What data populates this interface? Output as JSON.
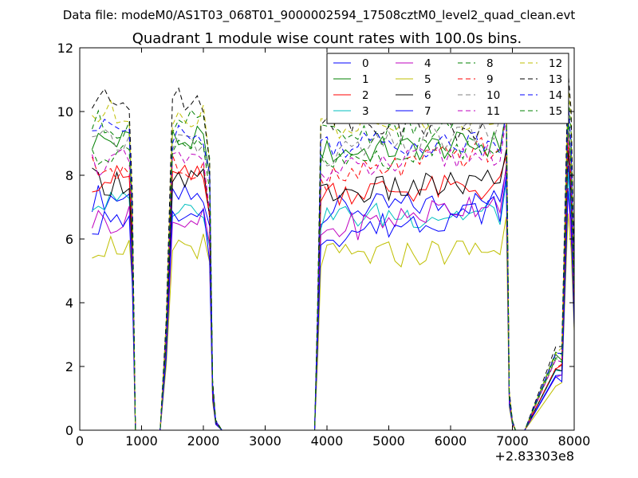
{
  "chart_data": {
    "type": "line",
    "suptitle": "Data file: modeM0/AS1T03_068T01_9000002594_17508cztM0_level2_quad_clean.evt",
    "title": "Quadrant 1 module wise count rates with 100.0s bins.",
    "xlabel": "",
    "ylabel": "",
    "x_offset_label": "+2.83303e8",
    "xlim": [
      0,
      8000
    ],
    "ylim": [
      0,
      12
    ],
    "x_ticks": [
      0,
      1000,
      2000,
      3000,
      4000,
      5000,
      6000,
      7000,
      8000
    ],
    "y_ticks": [
      0,
      2,
      4,
      6,
      8,
      10,
      12
    ],
    "legend_location": "top-right",
    "x": [
      200,
      300,
      400,
      500,
      600,
      700,
      800,
      850,
      900,
      1000,
      1100,
      1200,
      1300,
      1400,
      1500,
      1600,
      1700,
      1800,
      1900,
      2000,
      2100,
      2150,
      2200,
      2300,
      3000,
      3800,
      3850,
      3900,
      4000,
      4100,
      4200,
      4300,
      4400,
      4500,
      4600,
      4700,
      4800,
      4900,
      5000,
      5100,
      5200,
      5300,
      5400,
      5500,
      5600,
      5700,
      5800,
      5900,
      6000,
      6100,
      6200,
      6300,
      6400,
      6500,
      6600,
      6700,
      6800,
      6900,
      6950,
      7000,
      7050,
      7100,
      7200,
      7700,
      7800,
      7900,
      7950,
      8000
    ],
    "series": [
      {
        "name": "0",
        "color": "#0000ff",
        "style": "solid",
        "base": 7.3,
        "top": 7.0
      },
      {
        "name": "1",
        "color": "#008000",
        "style": "solid",
        "base": 9.1,
        "top": 8.8
      },
      {
        "name": "2",
        "color": "#ff0000",
        "style": "solid",
        "base": 7.9,
        "top": 7.4
      },
      {
        "name": "3",
        "color": "#00bfbf",
        "style": "solid",
        "base": 7.1,
        "top": 6.6
      },
      {
        "name": "4",
        "color": "#bf00bf",
        "style": "solid",
        "base": 6.6,
        "top": 7.1
      },
      {
        "name": "5",
        "color": "#bfbf00",
        "style": "solid",
        "base": 5.8,
        "top": 5.5
      },
      {
        "name": "6",
        "color": "#000000",
        "style": "solid",
        "base": 7.8,
        "top": 7.6
      },
      {
        "name": "7",
        "color": "#0000ff",
        "style": "solid",
        "base": 6.5,
        "top": 6.8
      },
      {
        "name": "8",
        "color": "#008000",
        "style": "dashed",
        "base": 9.6,
        "top": 9.5
      },
      {
        "name": "9",
        "color": "#ff0000",
        "style": "dashed",
        "base": 8.2,
        "top": 8.7
      },
      {
        "name": "10",
        "color": "#808080",
        "style": "dashed",
        "base": 9.0,
        "top": 9.3
      },
      {
        "name": "11",
        "color": "#bf00bf",
        "style": "dashed",
        "base": 8.4,
        "top": 8.6
      },
      {
        "name": "12",
        "color": "#bfbf00",
        "style": "dashed",
        "base": 9.9,
        "top": 9.6
      },
      {
        "name": "13",
        "color": "#000000",
        "style": "dashed",
        "base": 10.3,
        "top": 9.2
      },
      {
        "name": "14",
        "color": "#0000ff",
        "style": "dashed",
        "base": 9.4,
        "top": 8.8
      },
      {
        "name": "15",
        "color": "#008000",
        "style": "dashed",
        "base": 8.7,
        "top": 8.9
      }
    ]
  }
}
